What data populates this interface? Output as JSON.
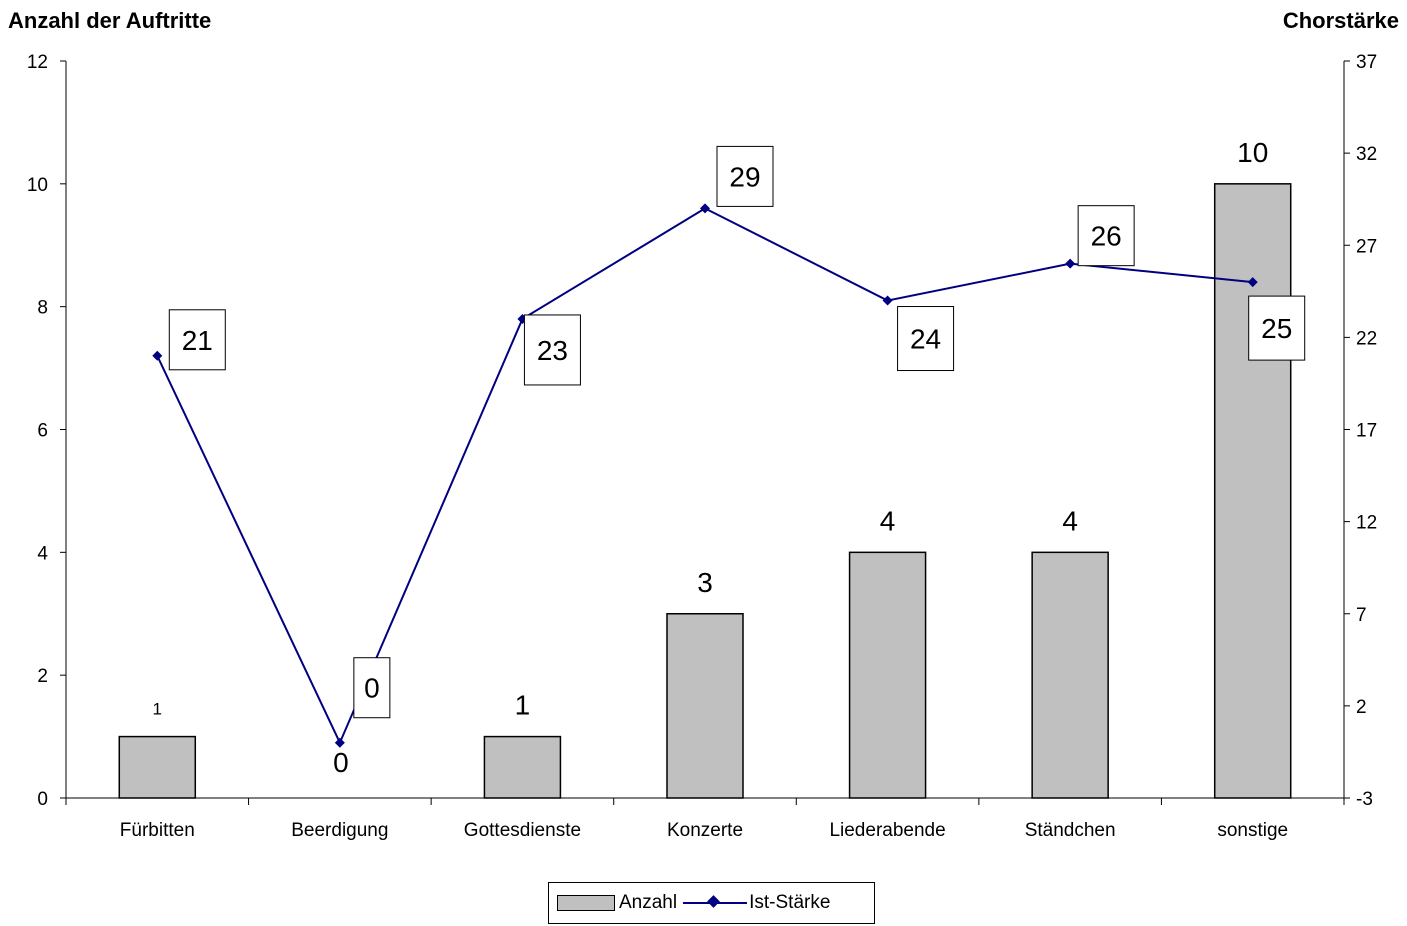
{
  "chart_data": {
    "type": "bar+line",
    "categories": [
      "Fürbitten",
      "Beerdigung",
      "Gottesdienste",
      "Konzerte",
      "Liederabende",
      "Ständchen",
      "sonstige"
    ],
    "series": [
      {
        "name": "Anzahl",
        "type": "bar",
        "axis": "left",
        "values": [
          1,
          0,
          1,
          3,
          4,
          4,
          10
        ],
        "data_labels": [
          "1",
          "0",
          "1",
          "3",
          "4",
          "4",
          "10"
        ],
        "color": "#c0c0c0"
      },
      {
        "name": "Ist-Stärke",
        "type": "line",
        "axis": "right",
        "values": [
          21,
          0,
          23,
          29,
          24,
          26,
          25
        ],
        "data_labels": [
          "21",
          "0",
          "23",
          "29",
          "24",
          "26",
          "25"
        ],
        "color": "#000080"
      }
    ],
    "ylabel_left": "Anzahl der Auftritte",
    "ylabel_right": "Chorstärke",
    "ylim_left": [
      0,
      12
    ],
    "yticks_left": [
      "0",
      "2",
      "4",
      "6",
      "8",
      "10",
      "12"
    ],
    "ylim_right": [
      -3,
      37
    ],
    "yticks_right": [
      "-3",
      "2",
      "7",
      "12",
      "17",
      "22",
      "27",
      "32",
      "37"
    ],
    "grid": false,
    "legend": "bottom-center"
  }
}
